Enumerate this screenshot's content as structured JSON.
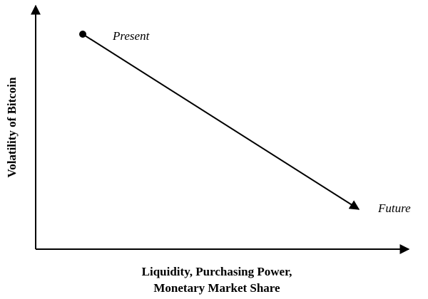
{
  "diagram": {
    "y_axis_label": "Volatility of Bitcoin",
    "x_axis_label_line1": "Liquidity, Purchasing Power,",
    "x_axis_label_line2": "Monetary Market Share",
    "start_label": "Present",
    "end_label": "Future",
    "line_color": "#000000"
  }
}
